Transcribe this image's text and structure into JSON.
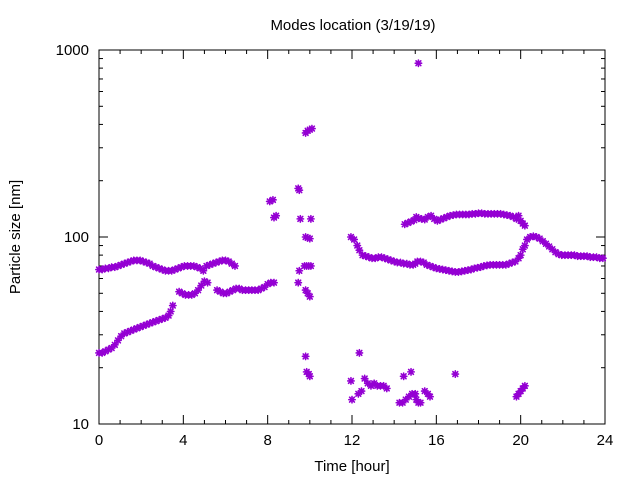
{
  "chart_data": {
    "type": "scatter",
    "title": "Modes location (3/19/19)",
    "xlabel": "Time [hour]",
    "ylabel": "Particle size [nm]",
    "xlim": [
      0,
      24
    ],
    "ylim": [
      10,
      1000
    ],
    "yscale": "log",
    "grid": false,
    "x_ticks": [
      0,
      4,
      8,
      12,
      16,
      20,
      24
    ],
    "x_tick_labels": [
      "0",
      "4",
      "8",
      "12",
      "16",
      "20",
      "24"
    ],
    "y_ticks": [
      10,
      100,
      1000
    ],
    "y_tick_labels": [
      "10",
      "100",
      "1000"
    ],
    "marker_color": "#9400d3",
    "series": [
      {
        "points": [
          [
            0.0,
            67
          ],
          [
            0.15,
            67
          ],
          [
            0.3,
            68
          ],
          [
            0.45,
            68
          ],
          [
            0.6,
            69
          ],
          [
            0.75,
            69
          ],
          [
            0.9,
            70
          ],
          [
            1.05,
            71
          ],
          [
            1.2,
            72
          ],
          [
            1.35,
            73
          ],
          [
            1.5,
            74
          ],
          [
            1.65,
            75
          ],
          [
            1.8,
            75
          ],
          [
            1.95,
            75
          ],
          [
            2.1,
            74
          ],
          [
            2.25,
            73
          ],
          [
            2.4,
            72
          ],
          [
            2.55,
            70
          ],
          [
            2.7,
            69
          ],
          [
            2.85,
            68
          ],
          [
            3.0,
            67
          ],
          [
            3.15,
            66
          ],
          [
            3.3,
            66
          ],
          [
            3.45,
            66
          ],
          [
            3.6,
            67
          ],
          [
            3.75,
            68
          ],
          [
            3.9,
            69
          ],
          [
            4.05,
            70
          ],
          [
            4.2,
            70
          ],
          [
            4.35,
            70
          ],
          [
            4.5,
            70
          ],
          [
            4.65,
            69
          ],
          [
            4.8,
            68
          ],
          [
            4.95,
            66
          ],
          [
            5.1,
            70
          ],
          [
            5.25,
            71
          ],
          [
            5.4,
            72
          ],
          [
            5.55,
            73
          ],
          [
            5.7,
            74
          ],
          [
            5.85,
            75
          ],
          [
            6.0,
            75
          ],
          [
            6.15,
            74
          ],
          [
            6.3,
            72
          ],
          [
            6.45,
            70
          ],
          [
            0.0,
            24
          ],
          [
            0.15,
            24
          ],
          [
            0.3,
            24.5
          ],
          [
            0.45,
            25
          ],
          [
            0.6,
            25.5
          ],
          [
            0.75,
            26.5
          ],
          [
            0.9,
            28
          ],
          [
            1.05,
            29.5
          ],
          [
            1.2,
            30.5
          ],
          [
            1.35,
            31
          ],
          [
            1.5,
            31.5
          ],
          [
            1.65,
            32
          ],
          [
            1.8,
            32.5
          ],
          [
            1.95,
            33
          ],
          [
            2.1,
            33.5
          ],
          [
            2.25,
            34
          ],
          [
            2.4,
            34.5
          ],
          [
            2.55,
            35
          ],
          [
            2.7,
            35.5
          ],
          [
            2.85,
            36
          ],
          [
            3.0,
            36.5
          ],
          [
            3.15,
            37
          ],
          [
            3.3,
            38
          ],
          [
            3.4,
            40
          ],
          [
            3.5,
            43
          ],
          [
            3.8,
            51
          ],
          [
            3.95,
            50
          ],
          [
            4.1,
            49
          ],
          [
            4.25,
            49
          ],
          [
            4.4,
            49
          ],
          [
            4.55,
            50
          ],
          [
            4.7,
            52
          ],
          [
            4.85,
            55
          ],
          [
            5.0,
            58
          ],
          [
            5.15,
            57
          ],
          [
            5.6,
            52
          ],
          [
            5.75,
            51
          ],
          [
            5.9,
            50
          ],
          [
            6.05,
            50
          ],
          [
            6.2,
            51
          ],
          [
            6.35,
            52
          ],
          [
            6.5,
            53
          ],
          [
            6.65,
            53
          ],
          [
            6.8,
            52
          ],
          [
            6.95,
            52
          ],
          [
            7.1,
            52
          ],
          [
            7.25,
            52
          ],
          [
            7.4,
            52
          ],
          [
            7.55,
            52
          ],
          [
            7.7,
            53
          ],
          [
            7.85,
            54
          ],
          [
            8.0,
            56
          ],
          [
            8.15,
            57
          ],
          [
            8.3,
            57
          ],
          [
            8.1,
            155
          ],
          [
            8.25,
            158
          ],
          [
            8.3,
            127
          ],
          [
            8.4,
            130
          ],
          [
            9.45,
            182
          ],
          [
            9.5,
            178
          ],
          [
            9.55,
            125
          ],
          [
            9.45,
            57
          ],
          [
            9.5,
            66
          ],
          [
            9.8,
            100
          ],
          [
            9.9,
            99
          ],
          [
            10.0,
            98
          ],
          [
            9.75,
            70
          ],
          [
            9.85,
            70
          ],
          [
            9.95,
            70
          ],
          [
            10.05,
            70
          ],
          [
            9.8,
            52
          ],
          [
            9.9,
            50
          ],
          [
            10.0,
            48
          ],
          [
            9.8,
            23
          ],
          [
            9.85,
            19
          ],
          [
            9.95,
            18.5
          ],
          [
            10.0,
            18
          ],
          [
            10.05,
            125
          ],
          [
            9.8,
            360
          ],
          [
            9.9,
            370
          ],
          [
            10.0,
            375
          ],
          [
            10.1,
            380
          ],
          [
            11.95,
            100
          ],
          [
            12.1,
            97
          ],
          [
            12.25,
            90
          ],
          [
            12.35,
            85
          ],
          [
            12.5,
            80
          ],
          [
            12.65,
            79
          ],
          [
            12.8,
            78
          ],
          [
            12.95,
            77
          ],
          [
            13.1,
            77
          ],
          [
            13.25,
            78
          ],
          [
            13.4,
            78
          ],
          [
            13.55,
            77
          ],
          [
            13.7,
            76
          ],
          [
            13.85,
            75
          ],
          [
            14.0,
            74
          ],
          [
            14.15,
            73
          ],
          [
            14.3,
            73
          ],
          [
            14.45,
            72
          ],
          [
            14.6,
            72
          ],
          [
            14.75,
            71
          ],
          [
            14.9,
            71
          ],
          [
            15.0,
            72
          ],
          [
            15.1,
            74
          ],
          [
            15.25,
            74
          ],
          [
            15.4,
            73
          ],
          [
            15.55,
            71
          ],
          [
            15.7,
            70
          ],
          [
            15.85,
            69
          ],
          [
            16.0,
            68
          ],
          [
            16.15,
            67.5
          ],
          [
            16.3,
            67
          ],
          [
            16.45,
            66.5
          ],
          [
            16.6,
            66
          ],
          [
            16.75,
            65.5
          ],
          [
            16.9,
            65
          ],
          [
            17.05,
            65
          ],
          [
            17.2,
            65.5
          ],
          [
            17.35,
            66
          ],
          [
            17.5,
            66.5
          ],
          [
            17.65,
            67
          ],
          [
            17.8,
            68
          ],
          [
            17.95,
            68.5
          ],
          [
            18.1,
            69
          ],
          [
            18.25,
            70
          ],
          [
            18.4,
            70.5
          ],
          [
            18.55,
            71
          ],
          [
            18.7,
            71
          ],
          [
            18.85,
            71
          ],
          [
            19.0,
            71
          ],
          [
            19.15,
            71
          ],
          [
            19.3,
            71
          ],
          [
            19.45,
            72
          ],
          [
            19.6,
            73
          ],
          [
            19.75,
            74
          ],
          [
            19.9,
            77
          ],
          [
            20.0,
            80
          ],
          [
            20.1,
            86
          ],
          [
            20.2,
            90
          ],
          [
            20.3,
            97
          ],
          [
            20.45,
            100
          ],
          [
            20.6,
            101
          ],
          [
            20.75,
            100
          ],
          [
            20.9,
            98
          ],
          [
            21.05,
            95
          ],
          [
            21.2,
            92
          ],
          [
            21.35,
            89
          ],
          [
            21.5,
            86
          ],
          [
            21.65,
            83
          ],
          [
            21.8,
            81
          ],
          [
            21.95,
            80
          ],
          [
            22.1,
            80
          ],
          [
            22.25,
            80
          ],
          [
            22.4,
            80
          ],
          [
            22.55,
            80
          ],
          [
            22.7,
            79
          ],
          [
            22.85,
            79
          ],
          [
            23.0,
            79
          ],
          [
            23.15,
            79
          ],
          [
            23.3,
            78
          ],
          [
            23.45,
            78
          ],
          [
            23.6,
            78
          ],
          [
            23.75,
            77
          ],
          [
            23.9,
            77
          ],
          [
            14.5,
            117
          ],
          [
            14.65,
            119
          ],
          [
            14.8,
            121
          ],
          [
            14.95,
            123
          ],
          [
            15.05,
            128
          ],
          [
            15.15,
            126
          ],
          [
            15.3,
            125
          ],
          [
            15.45,
            124
          ],
          [
            15.6,
            128
          ],
          [
            15.75,
            130
          ],
          [
            15.9,
            125
          ],
          [
            16.05,
            122
          ],
          [
            16.2,
            124
          ],
          [
            16.35,
            126
          ],
          [
            16.5,
            128
          ],
          [
            16.65,
            130
          ],
          [
            16.8,
            131
          ],
          [
            16.95,
            132
          ],
          [
            17.1,
            132
          ],
          [
            17.25,
            132
          ],
          [
            17.4,
            132
          ],
          [
            17.55,
            132
          ],
          [
            17.7,
            133
          ],
          [
            17.85,
            133
          ],
          [
            18.0,
            134
          ],
          [
            18.15,
            134
          ],
          [
            18.3,
            133
          ],
          [
            18.45,
            133
          ],
          [
            18.6,
            133
          ],
          [
            18.75,
            133
          ],
          [
            18.9,
            133
          ],
          [
            19.05,
            133
          ],
          [
            19.2,
            132
          ],
          [
            19.35,
            131
          ],
          [
            19.5,
            130
          ],
          [
            19.65,
            128
          ],
          [
            19.8,
            125
          ],
          [
            19.9,
            130
          ],
          [
            20.0,
            122
          ],
          [
            20.1,
            118
          ],
          [
            20.2,
            115
          ],
          [
            15.15,
            850
          ],
          [
            11.95,
            17
          ],
          [
            12.0,
            13.5
          ],
          [
            12.3,
            14.5
          ],
          [
            12.35,
            24
          ],
          [
            12.45,
            15
          ],
          [
            12.6,
            17.5
          ],
          [
            12.75,
            16.5
          ],
          [
            12.9,
            16
          ],
          [
            13.05,
            16.5
          ],
          [
            13.2,
            16
          ],
          [
            13.35,
            16
          ],
          [
            13.5,
            16
          ],
          [
            13.65,
            15.5
          ],
          [
            14.25,
            13
          ],
          [
            14.4,
            13
          ],
          [
            14.45,
            18
          ],
          [
            14.55,
            13.5
          ],
          [
            14.7,
            14
          ],
          [
            14.8,
            19
          ],
          [
            14.85,
            14.5
          ],
          [
            15.0,
            14.5
          ],
          [
            15.05,
            13.5
          ],
          [
            15.15,
            13
          ],
          [
            15.25,
            13
          ],
          [
            15.45,
            15
          ],
          [
            15.6,
            14.5
          ],
          [
            15.7,
            14
          ],
          [
            16.9,
            18.5
          ],
          [
            19.8,
            14
          ],
          [
            19.9,
            14.5
          ],
          [
            20.0,
            15
          ],
          [
            20.1,
            15.5
          ],
          [
            20.2,
            16
          ]
        ]
      }
    ]
  }
}
